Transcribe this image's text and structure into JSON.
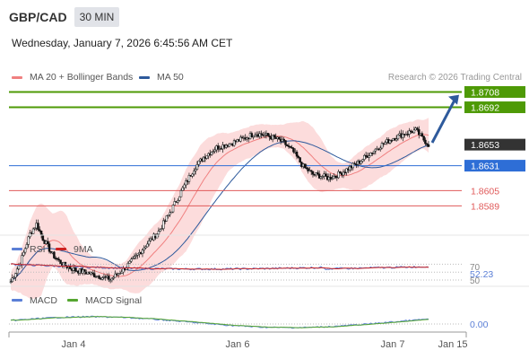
{
  "header": {
    "symbol": "GBP/CAD",
    "timeframe": "30 MIN",
    "datetime": "Wednesday, January 7, 2026 6:45:56 AM CET"
  },
  "legend": [
    {
      "label": "MA 20 + Bollinger Bands",
      "color": "#f08080"
    },
    {
      "label": "MA 50",
      "color": "#2e5a9c"
    }
  ],
  "credit": "Research © 2026 Trading Central",
  "chart_data": [
    {
      "type": "candlestick",
      "title": "GBP/CAD",
      "ylim": [
        1.8565,
        1.8715
      ],
      "grid": false,
      "levels": [
        {
          "value": 1.8708,
          "label": "1.8708",
          "kind": "resistance",
          "color": "#4e9a06"
        },
        {
          "value": 1.8692,
          "label": "1.8692",
          "kind": "resistance",
          "color": "#4e9a06"
        },
        {
          "value": 1.8653,
          "label": "1.8653",
          "kind": "last-price",
          "color": "#333333"
        },
        {
          "value": 1.8631,
          "label": "1.8631",
          "kind": "pivot",
          "color": "#2e6ed6"
        },
        {
          "value": 1.8605,
          "label": "1.8605",
          "kind": "support",
          "color": "#e05a5a"
        },
        {
          "value": 1.8589,
          "label": "1.8589",
          "kind": "support",
          "color": "#e05a5a"
        }
      ],
      "arrow": {
        "direction": "up",
        "color": "#2e5a9c"
      },
      "series": [
        {
          "name": "Price",
          "anchors": [
            [
              0,
              1.851
            ],
            [
              3,
              1.852
            ],
            [
              6,
              1.853
            ],
            [
              9,
              1.8545
            ],
            [
              12,
              1.856
            ],
            [
              16,
              1.857
            ],
            [
              20,
              1.8555
            ],
            [
              26,
              1.8538
            ],
            [
              32,
              1.8528
            ],
            [
              40,
              1.8522
            ],
            [
              48,
              1.8519
            ],
            [
              56,
              1.8515
            ],
            [
              62,
              1.8512
            ],
            [
              68,
              1.852
            ],
            [
              76,
              1.8532
            ],
            [
              84,
              1.8548
            ],
            [
              92,
              1.8562
            ],
            [
              100,
              1.8585
            ],
            [
              108,
              1.861
            ],
            [
              114,
              1.8628
            ],
            [
              120,
              1.864
            ],
            [
              128,
              1.865
            ],
            [
              138,
              1.8655
            ],
            [
              146,
              1.866
            ],
            [
              152,
              1.8665
            ],
            [
              158,
              1.8663
            ],
            [
              164,
              1.866
            ],
            [
              170,
              1.8655
            ],
            [
              176,
              1.8645
            ],
            [
              182,
              1.863
            ],
            [
              188,
              1.8622
            ],
            [
              194,
              1.862
            ],
            [
              198,
              1.8618
            ],
            [
              204,
              1.8622
            ],
            [
              210,
              1.8628
            ],
            [
              216,
              1.8634
            ],
            [
              222,
              1.8642
            ],
            [
              230,
              1.8652
            ],
            [
              238,
              1.866
            ],
            [
              246,
              1.8665
            ],
            [
              252,
              1.8668
            ],
            [
              256,
              1.866
            ],
            [
              260,
              1.8653
            ]
          ]
        },
        {
          "name": "MA 20",
          "color": "#f08080"
        },
        {
          "name": "MA 50",
          "color": "#2e5a9c"
        }
      ]
    },
    {
      "type": "line",
      "title": "RSI",
      "ylim": [
        0,
        100
      ],
      "levels": [
        {
          "value": 70,
          "label": "70"
        },
        {
          "value": 50,
          "label": "50"
        }
      ],
      "last_value": "52.23",
      "series": [
        {
          "name": "RSI",
          "color": "#5b7fd6"
        },
        {
          "name": "9MA",
          "color": "#cc2222"
        }
      ]
    },
    {
      "type": "line",
      "title": "MACD",
      "last_value": "0.00",
      "series": [
        {
          "name": "MACD",
          "color": "#5b7fd6"
        },
        {
          "name": "MACD Signal",
          "color": "#55a630"
        }
      ]
    }
  ],
  "x_axis": {
    "ticks": [
      "Jan 4",
      "Jan 6",
      "Jan 7",
      "Jan 15"
    ]
  },
  "indicators": {
    "rsi": {
      "labels": [
        "RSI",
        "9MA"
      ],
      "colors": [
        "#5b7fd6",
        "#cc2222"
      ],
      "level_labels": [
        "70",
        "50"
      ],
      "value": "52.23"
    },
    "macd": {
      "labels": [
        "MACD",
        "MACD Signal"
      ],
      "colors": [
        "#5b7fd6",
        "#55a630"
      ],
      "value": "0.00"
    }
  }
}
